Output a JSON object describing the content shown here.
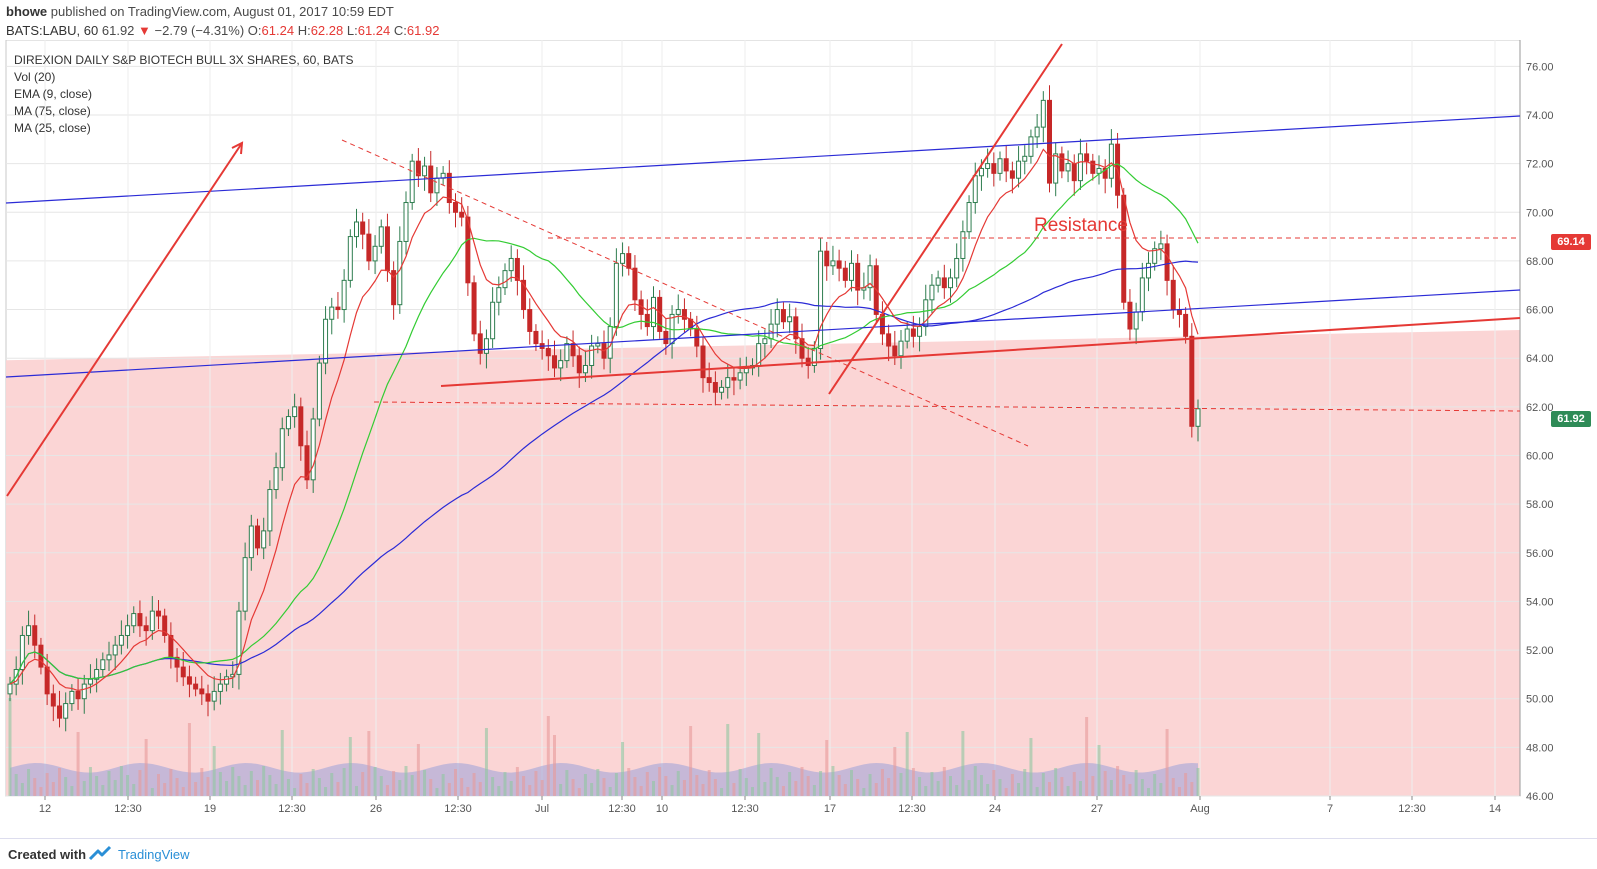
{
  "header": {
    "author": "bhowe",
    "published": "published on TradingView.com, August 01, 2017 10:59 EDT",
    "symbol": "BATS:LABU, 60",
    "last": "61.92",
    "change_arrow": "▼",
    "change": "−2.79 (−4.31%)",
    "o_label": "O:",
    "o": "61.24",
    "h_label": "H:",
    "h": "62.28",
    "l_label": "L:",
    "l": "61.24",
    "c_label": "C:",
    "c": "61.92"
  },
  "indicators": {
    "title": "DIREXION DAILY S&P BIOTECH BULL 3X SHARES, 60, BATS",
    "items": [
      "Vol (20)",
      "EMA (9, close)",
      "MA (75, close)",
      "MA (25, close)"
    ]
  },
  "annotations": {
    "resistance": "Resistance"
  },
  "price_labels": {
    "resistance_level": "69.14",
    "last_price": "61.92"
  },
  "footer": {
    "created_with": "Created with",
    "brand": "TradingView"
  },
  "colors": {
    "up_candle": "#2e7d4f",
    "down_candle": "#c62828",
    "ema": "#e53935",
    "ma75": "#2b2bd6",
    "ma25": "#33cc33",
    "channel": "#2b2bd6",
    "trendline": "#e53935",
    "shade": "#fbd3d3",
    "volume_avg": "#9aa0d9"
  },
  "chart_data": {
    "type": "candlestick",
    "title": "DIREXION DAILY S&P BIOTECH BULL 3X SHARES, 60, BATS",
    "interval": "60",
    "ylim": [
      46,
      77
    ],
    "y_ticks": [
      "76.00",
      "74.00",
      "72.00",
      "70.00",
      "68.00",
      "66.00",
      "64.00",
      "62.00",
      "60.00",
      "58.00",
      "56.00",
      "54.00",
      "52.00",
      "50.00",
      "48.00",
      "46.00"
    ],
    "x_tick_labels": [
      "12",
      "12:30",
      "19",
      "12:30",
      "26",
      "12:30",
      "Jul",
      "12:30",
      "10",
      "12:30",
      "17",
      "12:30",
      "24",
      "27",
      "Aug",
      "7",
      "12:30",
      "14"
    ],
    "grid": true,
    "scale": "linear",
    "close_series": [
      50.6,
      51.2,
      52.6,
      53.0,
      52.2,
      51.3,
      50.2,
      49.7,
      49.2,
      49.8,
      50.3,
      50.0,
      50.6,
      50.8,
      51.2,
      51.6,
      51.8,
      52.2,
      52.6,
      53.0,
      53.5,
      53.0,
      52.8,
      53.6,
      53.4,
      52.6,
      51.7,
      51.3,
      50.9,
      50.6,
      50.4,
      50.2,
      49.9,
      50.3,
      50.6,
      50.9,
      51.0,
      53.6,
      55.8,
      57.1,
      56.2,
      56.9,
      58.6,
      59.5,
      61.1,
      61.6,
      62.0,
      60.4,
      59.0,
      61.5,
      63.8,
      65.6,
      66.1,
      66.0,
      67.2,
      69.0,
      69.6,
      69.1,
      68.0,
      68.6,
      69.4,
      67.6,
      66.2,
      68.8,
      70.4,
      72.1,
      71.5,
      71.9,
      70.8,
      71.4,
      71.6,
      70.4,
      70.0,
      69.8,
      67.1,
      65.0,
      64.2,
      64.8,
      66.3,
      66.9,
      67.6,
      68.1,
      67.2,
      66.0,
      65.1,
      64.6,
      64.4,
      64.1,
      63.6,
      63.9,
      64.6,
      64.1,
      63.4,
      63.7,
      64.5,
      64.6,
      64.0,
      65.3,
      67.9,
      68.3,
      67.7,
      66.4,
      65.8,
      65.3,
      66.5,
      65.1,
      64.6,
      65.8,
      66.0,
      65.6,
      65.2,
      64.5,
      63.2,
      63.0,
      62.6,
      62.8,
      63.2,
      63.1,
      63.4,
      63.6,
      63.7,
      64.6,
      64.8,
      65.4,
      66.0,
      65.5,
      65.7,
      64.8,
      64.0,
      63.7,
      64.4,
      68.4,
      67.8,
      68.0,
      67.7,
      67.2,
      67.9,
      66.8,
      66.9,
      67.8,
      65.8,
      65.0,
      64.5,
      64.1,
      64.7,
      65.2,
      64.9,
      65.3,
      66.4,
      67.0,
      67.3,
      66.9,
      67.3,
      68.1,
      69.2,
      70.4,
      71.5,
      71.8,
      72.0,
      71.6,
      72.2,
      71.7,
      71.4,
      72.1,
      72.3,
      73.1,
      73.5,
      74.6,
      71.2,
      72.4,
      71.7,
      72.0,
      71.3,
      72.4,
      72.1,
      71.6,
      71.8,
      71.4,
      72.8,
      70.7,
      66.3,
      65.2,
      65.9,
      67.3,
      67.9,
      68.5,
      68.7,
      67.2,
      66.0,
      65.8,
      64.9,
      61.2,
      61.92
    ],
    "series": [
      {
        "name": "Vol (20)",
        "type": "volume"
      },
      {
        "name": "EMA (9, close)",
        "type": "line"
      },
      {
        "name": "MA (75, close)",
        "type": "line"
      },
      {
        "name": "MA (25, close)",
        "type": "line"
      }
    ],
    "horizontal_levels": [
      69.14,
      61.92
    ]
  }
}
